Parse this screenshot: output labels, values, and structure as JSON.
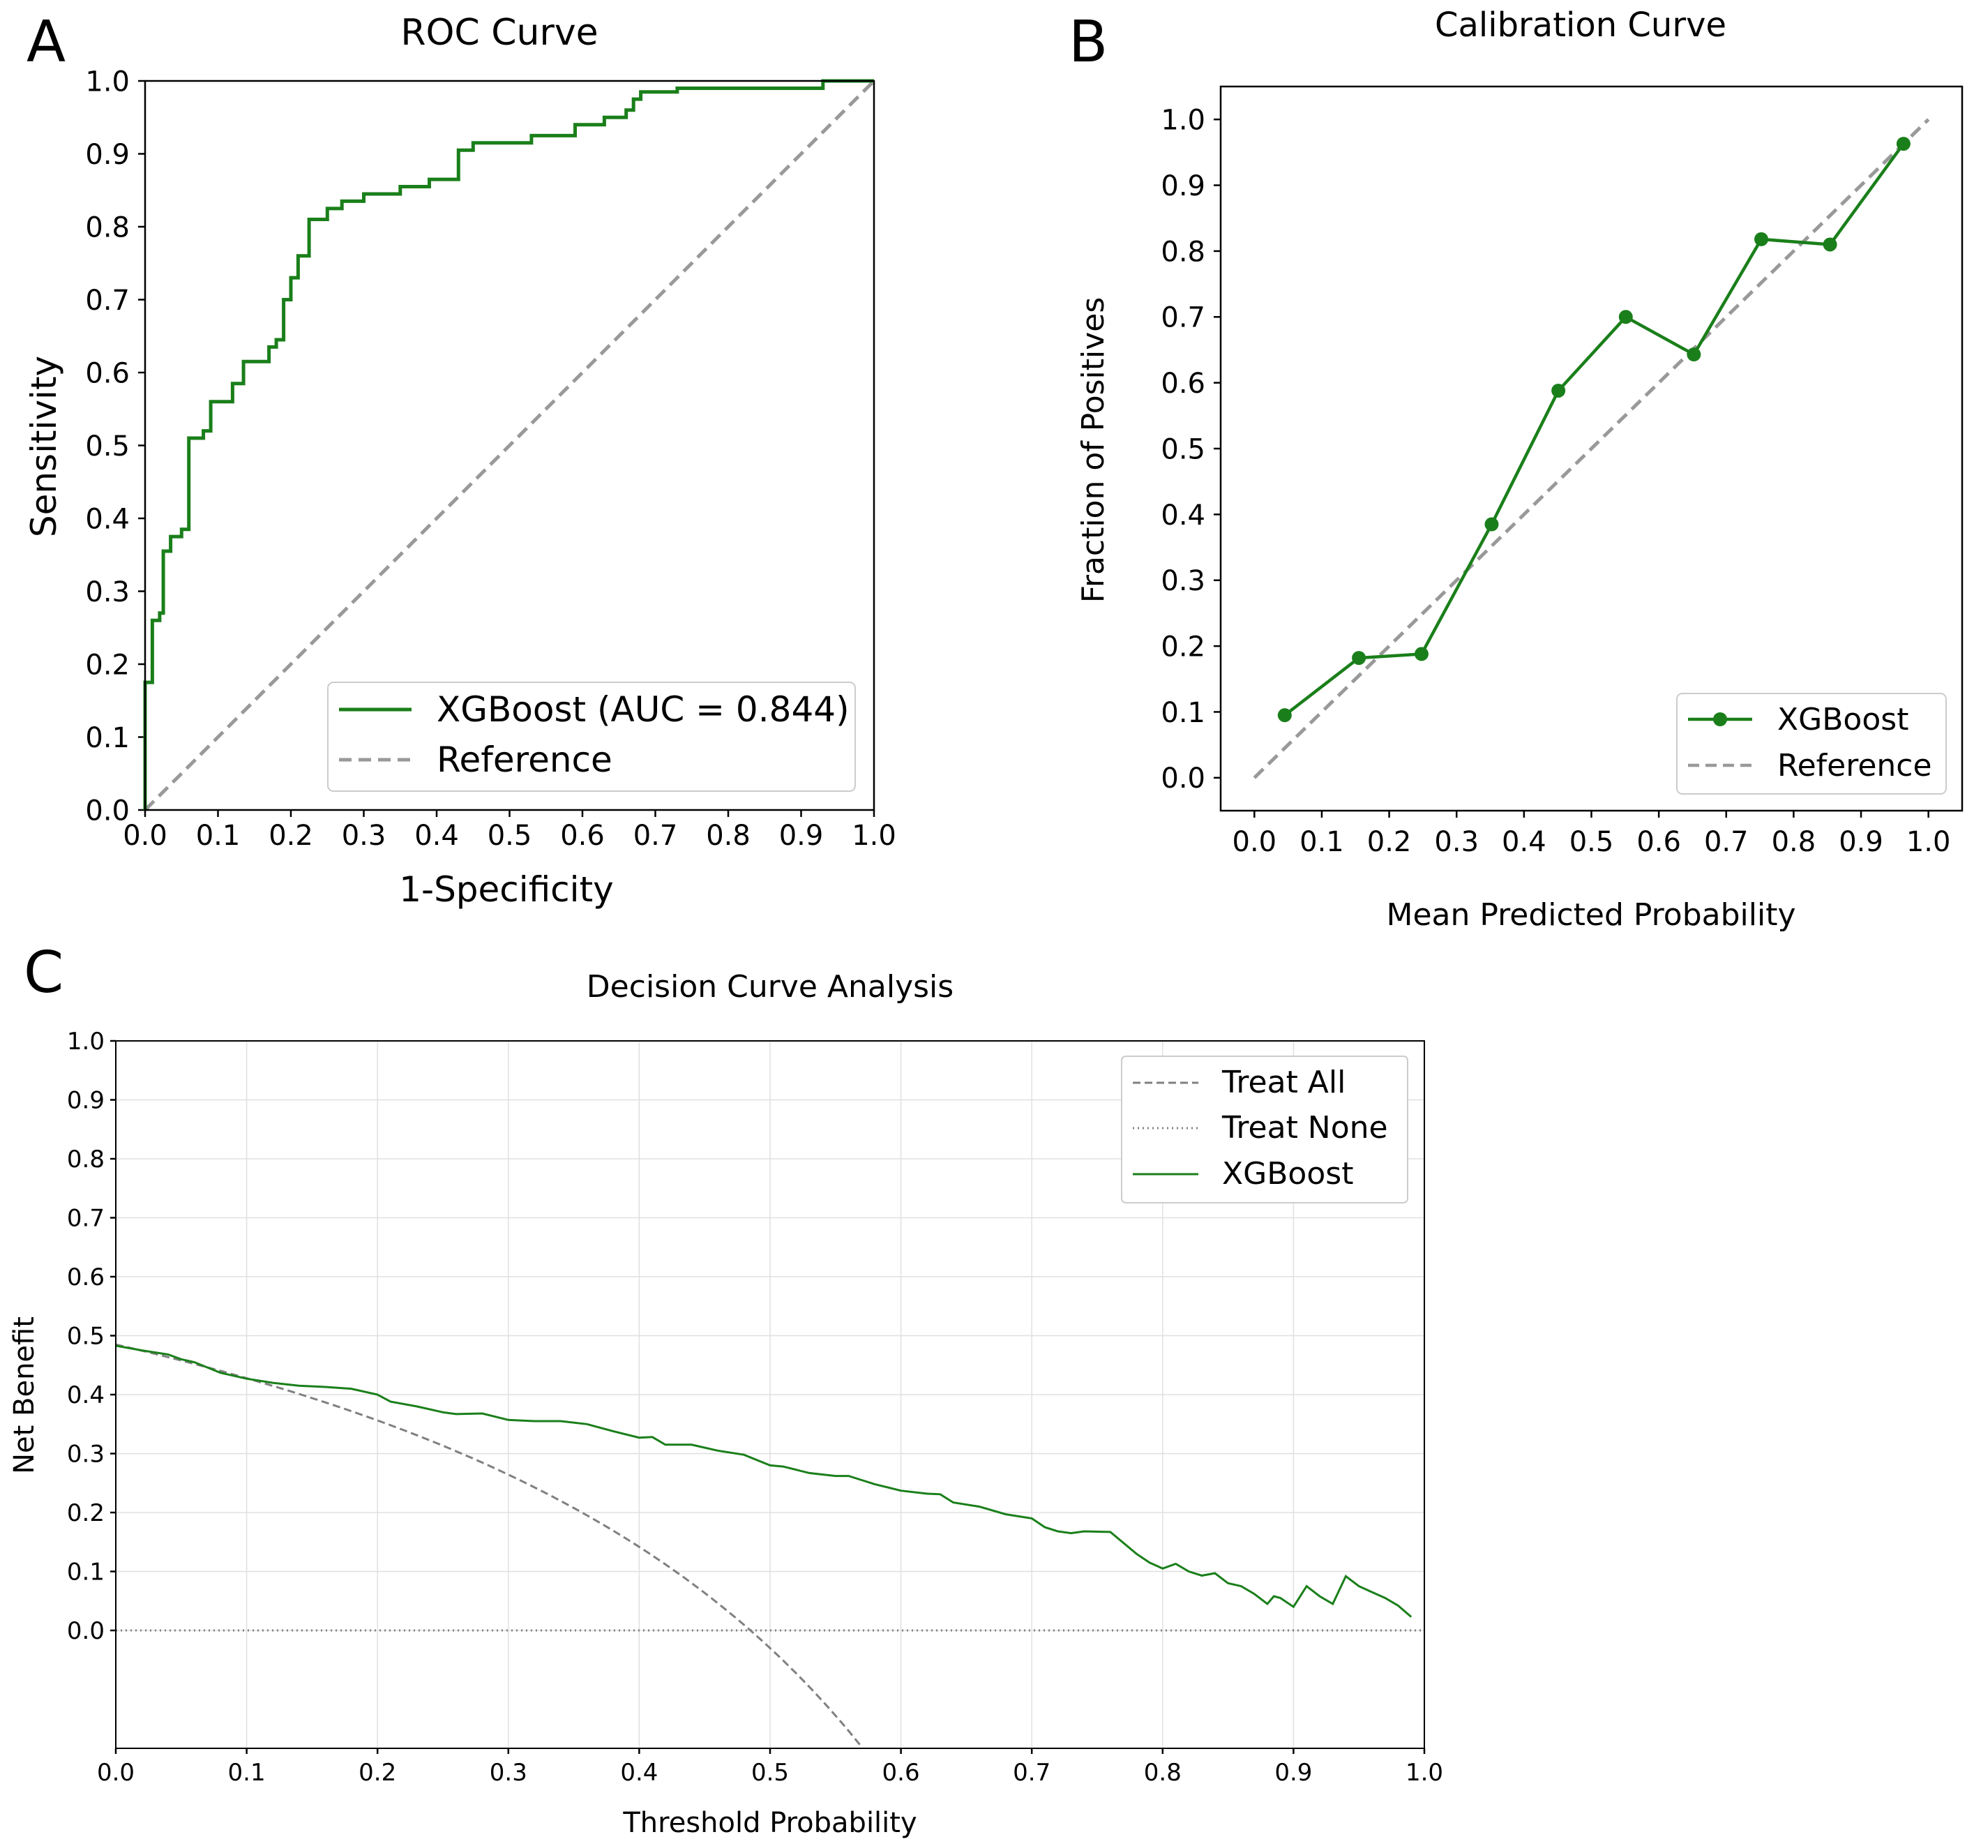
{
  "colors": {
    "model": "#1a7f1a",
    "reference": "#999999",
    "dca_ref": "#808080",
    "grid": "#e0e0e0",
    "axis": "#000000"
  },
  "chart_data": [
    {
      "panel_label": "A",
      "type": "line",
      "title": "ROC Curve",
      "xlabel": "1-Specificity",
      "ylabel": "Sensitivity",
      "xlim": [
        0,
        1
      ],
      "ylim": [
        0,
        1
      ],
      "xticks": [
        "0.0",
        "0.1",
        "0.2",
        "0.3",
        "0.4",
        "0.5",
        "0.6",
        "0.7",
        "0.8",
        "0.9",
        "1.0"
      ],
      "yticks": [
        "0.0",
        "0.1",
        "0.2",
        "0.3",
        "0.4",
        "0.5",
        "0.6",
        "0.7",
        "0.8",
        "0.9",
        "1.0"
      ],
      "grid": false,
      "legend_position": "bottom-right",
      "series": [
        {
          "name": "XGBoost (AUC = 0.844)",
          "style": "step",
          "x": [
            0,
            0,
            0.01,
            0.01,
            0.02,
            0.02,
            0.025,
            0.025,
            0.035,
            0.035,
            0.05,
            0.05,
            0.06,
            0.06,
            0.08,
            0.08,
            0.09,
            0.09,
            0.12,
            0.12,
            0.135,
            0.135,
            0.17,
            0.17,
            0.18,
            0.18,
            0.19,
            0.19,
            0.2,
            0.2,
            0.21,
            0.21,
            0.225,
            0.225,
            0.25,
            0.25,
            0.27,
            0.27,
            0.3,
            0.3,
            0.35,
            0.35,
            0.39,
            0.39,
            0.43,
            0.43,
            0.45,
            0.45,
            0.53,
            0.53,
            0.59,
            0.59,
            0.63,
            0.63,
            0.66,
            0.66,
            0.67,
            0.67,
            0.68,
            0.68,
            0.73,
            0.73,
            0.93,
            0.93,
            1.0
          ],
          "y": [
            0,
            0.175,
            0.175,
            0.26,
            0.26,
            0.27,
            0.27,
            0.355,
            0.355,
            0.375,
            0.375,
            0.385,
            0.385,
            0.51,
            0.51,
            0.52,
            0.52,
            0.56,
            0.56,
            0.585,
            0.585,
            0.615,
            0.615,
            0.635,
            0.635,
            0.645,
            0.645,
            0.7,
            0.7,
            0.73,
            0.73,
            0.76,
            0.76,
            0.81,
            0.81,
            0.825,
            0.825,
            0.835,
            0.835,
            0.845,
            0.845,
            0.855,
            0.855,
            0.865,
            0.865,
            0.905,
            0.905,
            0.915,
            0.915,
            0.925,
            0.925,
            0.94,
            0.94,
            0.95,
            0.95,
            0.96,
            0.96,
            0.975,
            0.975,
            0.985,
            0.985,
            0.99,
            0.99,
            1.0,
            1.0
          ]
        },
        {
          "name": "Reference",
          "style": "dashed",
          "x": [
            0,
            1
          ],
          "y": [
            0,
            1
          ]
        }
      ]
    },
    {
      "panel_label": "B",
      "type": "line",
      "title": "Calibration Curve",
      "xlabel": "Mean Predicted Probability",
      "ylabel": "Fraction of Positives",
      "xlim": [
        -0.05,
        1.05
      ],
      "ylim": [
        -0.05,
        1.05
      ],
      "xticks": [
        "0.0",
        "0.1",
        "0.2",
        "0.3",
        "0.4",
        "0.5",
        "0.6",
        "0.7",
        "0.8",
        "0.9",
        "1.0"
      ],
      "yticks": [
        "0.0",
        "0.1",
        "0.2",
        "0.3",
        "0.4",
        "0.5",
        "0.6",
        "0.7",
        "0.8",
        "0.9",
        "1.0"
      ],
      "grid": false,
      "legend_position": "bottom-right",
      "series": [
        {
          "name": "XGBoost",
          "style": "marker-line",
          "x": [
            0.045,
            0.155,
            0.248,
            0.352,
            0.451,
            0.551,
            0.652,
            0.752,
            0.854,
            0.963
          ],
          "y": [
            0.095,
            0.182,
            0.188,
            0.385,
            0.588,
            0.7,
            0.643,
            0.818,
            0.81,
            0.963
          ]
        },
        {
          "name": "Reference",
          "style": "dashed",
          "x": [
            0,
            1
          ],
          "y": [
            0,
            1
          ]
        }
      ]
    },
    {
      "panel_label": "C",
      "type": "line",
      "title": "Decision Curve Analysis",
      "xlabel": "Threshold Probability",
      "ylabel": "Net Benefit",
      "xlim": [
        0,
        1
      ],
      "ylim": [
        -0.2,
        1.0
      ],
      "xticks": [
        "0.0",
        "0.1",
        "0.2",
        "0.3",
        "0.4",
        "0.5",
        "0.6",
        "0.7",
        "0.8",
        "0.9",
        "1.0"
      ],
      "yticks": [
        "0.0",
        "0.1",
        "0.2",
        "0.3",
        "0.4",
        "0.5",
        "0.6",
        "0.7",
        "0.8",
        "0.9",
        "1.0"
      ],
      "grid": true,
      "legend_position": "top-right",
      "prevalence": 0.485,
      "series": [
        {
          "name": "Treat All",
          "style": "dashed",
          "formula": "prevalence - (1 - prevalence) * t / (1 - t)",
          "x_range": [
            0,
            0.57
          ]
        },
        {
          "name": "Treat None",
          "style": "dotted",
          "x": [
            0,
            1
          ],
          "y": [
            0,
            0
          ]
        },
        {
          "name": "XGBoost",
          "style": "solid",
          "x": [
            0.0,
            0.02,
            0.04,
            0.05,
            0.06,
            0.08,
            0.1,
            0.12,
            0.14,
            0.16,
            0.18,
            0.2,
            0.21,
            0.23,
            0.25,
            0.26,
            0.28,
            0.3,
            0.32,
            0.34,
            0.36,
            0.38,
            0.4,
            0.41,
            0.42,
            0.44,
            0.46,
            0.48,
            0.5,
            0.51,
            0.53,
            0.55,
            0.56,
            0.57,
            0.58,
            0.6,
            0.62,
            0.63,
            0.64,
            0.66,
            0.68,
            0.7,
            0.71,
            0.72,
            0.73,
            0.74,
            0.76,
            0.78,
            0.79,
            0.8,
            0.81,
            0.82,
            0.83,
            0.84,
            0.85,
            0.86,
            0.87,
            0.88,
            0.885,
            0.89,
            0.9,
            0.91,
            0.92,
            0.93,
            0.94,
            0.95,
            0.96,
            0.97,
            0.98,
            0.99
          ],
          "y": [
            0.483,
            0.475,
            0.468,
            0.46,
            0.455,
            0.437,
            0.427,
            0.42,
            0.415,
            0.413,
            0.41,
            0.4,
            0.388,
            0.38,
            0.37,
            0.367,
            0.368,
            0.357,
            0.355,
            0.355,
            0.35,
            0.338,
            0.327,
            0.328,
            0.315,
            0.315,
            0.305,
            0.298,
            0.28,
            0.278,
            0.267,
            0.262,
            0.262,
            0.255,
            0.248,
            0.237,
            0.232,
            0.231,
            0.217,
            0.21,
            0.197,
            0.19,
            0.175,
            0.168,
            0.165,
            0.168,
            0.167,
            0.13,
            0.115,
            0.105,
            0.113,
            0.1,
            0.093,
            0.097,
            0.08,
            0.075,
            0.062,
            0.045,
            0.058,
            0.055,
            0.04,
            0.075,
            0.058,
            0.045,
            0.092,
            0.075,
            0.065,
            0.055,
            0.042,
            0.023
          ]
        }
      ]
    }
  ]
}
